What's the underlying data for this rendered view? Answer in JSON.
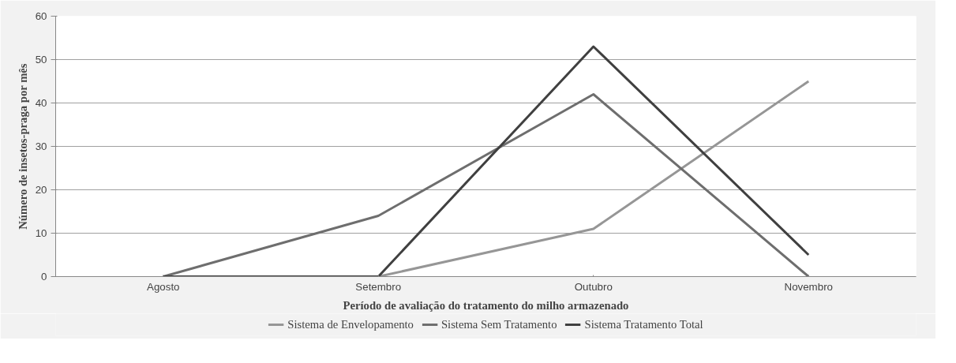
{
  "chart_data": {
    "type": "line",
    "xlabel": "Período de avaliação do tratamento do milho armazenado",
    "ylabel": "Número de insetos-praga por mês",
    "categories": [
      "Agosto",
      "Setembro",
      "Outubro",
      "Novembro"
    ],
    "series": [
      {
        "name": "Sistema de Envelopamento",
        "color": "#969696",
        "values": [
          0,
          0,
          11,
          45
        ]
      },
      {
        "name": "Sistema Sem Tratamento",
        "color": "#6e6e6e",
        "values": [
          0,
          14,
          42,
          0
        ]
      },
      {
        "name": "Sistema Tratamento Total",
        "color": "#404040",
        "values": [
          0,
          0,
          53,
          5
        ]
      }
    ],
    "ylim": [
      0,
      60
    ],
    "yticks": [
      0,
      10,
      20,
      30,
      40,
      50,
      60
    ],
    "grid": "y",
    "legend": "bottom",
    "marker": "none",
    "line_style": "solid"
  }
}
